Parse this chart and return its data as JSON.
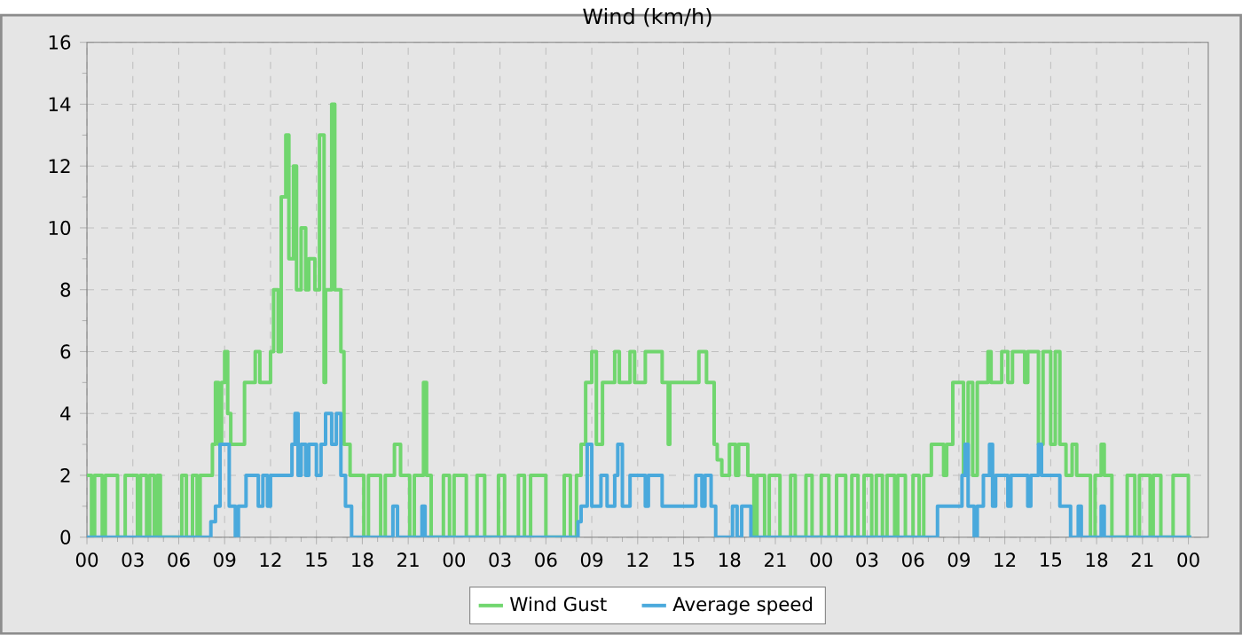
{
  "chart_data": {
    "type": "step",
    "title": "Wind (km/h)",
    "xlim": [
      0,
      73.3
    ],
    "xticks": [
      {
        "value": 0,
        "label": "00"
      },
      {
        "value": 3,
        "label": "03"
      },
      {
        "value": 6,
        "label": "06"
      },
      {
        "value": 9,
        "label": "09"
      },
      {
        "value": 12,
        "label": "12"
      },
      {
        "value": 15,
        "label": "15"
      },
      {
        "value": 18,
        "label": "18"
      },
      {
        "value": 21,
        "label": "21"
      },
      {
        "value": 24,
        "label": "00"
      },
      {
        "value": 27,
        "label": "03"
      },
      {
        "value": 30,
        "label": "06"
      },
      {
        "value": 33,
        "label": "09"
      },
      {
        "value": 36,
        "label": "12"
      },
      {
        "value": 39,
        "label": "15"
      },
      {
        "value": 42,
        "label": "18"
      },
      {
        "value": 45,
        "label": "21"
      },
      {
        "value": 48,
        "label": "00"
      },
      {
        "value": 51,
        "label": "03"
      },
      {
        "value": 54,
        "label": "06"
      },
      {
        "value": 57,
        "label": "09"
      },
      {
        "value": 60,
        "label": "12"
      },
      {
        "value": 63,
        "label": "15"
      },
      {
        "value": 66,
        "label": "18"
      },
      {
        "value": 69,
        "label": "21"
      },
      {
        "value": 72,
        "label": "00"
      }
    ],
    "ylim": [
      0,
      16
    ],
    "yticks": [
      0,
      2,
      4,
      6,
      8,
      10,
      12,
      14,
      16
    ],
    "grid": true,
    "legend": "bottom",
    "series": [
      {
        "name": "Wind Gust",
        "color": "#70d66e",
        "x": [
          0,
          0.3,
          0.5,
          1,
          1.2,
          2,
          2.5,
          3.3,
          3.5,
          3.9,
          4.1,
          4.4,
          4.6,
          4.8,
          6.2,
          6.5,
          6.9,
          7.2,
          7.4,
          8.2,
          8.4,
          8.6,
          8.8,
          9,
          9.2,
          9.4,
          10.3,
          11,
          11.3,
          12,
          12.2,
          12.5,
          12.7,
          13,
          13.2,
          13.5,
          13.7,
          14,
          14.3,
          14.5,
          14.9,
          15.2,
          15.5,
          15.6,
          16,
          16.2,
          16.6,
          16.8,
          17.2,
          18.1,
          18.4,
          19.2,
          19.5,
          20.1,
          20.5,
          21.1,
          21.4,
          22,
          22.2,
          22.5,
          23.3,
          23.7,
          24,
          24.8,
          25.5,
          26,
          26.9,
          27.3,
          28.2,
          28.6,
          29,
          30,
          31.2,
          31.6,
          32,
          32.3,
          32.6,
          33,
          33.3,
          33.7,
          34.5,
          34.8,
          35.5,
          35.8,
          36.5,
          37.6,
          38,
          38.1,
          40,
          40.5,
          41,
          41.2,
          41.5,
          42,
          42.4,
          42.6,
          43.2,
          43.6,
          43.8,
          44.3,
          44.6,
          45.3,
          46,
          46.3,
          47,
          47.4,
          48,
          48.5,
          49,
          49.6,
          50,
          50.4,
          50.8,
          51.3,
          51.6,
          52,
          52.3,
          52.8,
          53,
          53.5,
          54,
          54.4,
          54.7,
          55.2,
          56,
          56.2,
          56.6,
          57.3,
          57.6,
          57.9,
          58.2,
          58.9,
          59.1,
          59.8,
          60.2,
          60.5,
          61.3,
          61.5,
          62.2,
          62.5,
          63,
          63.3,
          63.6,
          64,
          64.4,
          64.7,
          65.6,
          65.9,
          66.3,
          66.5,
          67,
          68,
          68.5,
          68.8,
          69.5,
          69.7,
          70.2,
          71,
          72,
          72.2
        ],
        "values": [
          2,
          0,
          2,
          0,
          2,
          0,
          2,
          0,
          2,
          0,
          2,
          0,
          2,
          0,
          2,
          0,
          2,
          0,
          2,
          3,
          5,
          3,
          5,
          6,
          4,
          3,
          5,
          6,
          5,
          6,
          8,
          6,
          11,
          13,
          9,
          12,
          8,
          10,
          8,
          9,
          8,
          13,
          5,
          8,
          14,
          8,
          6,
          3,
          2,
          0,
          2,
          0,
          2,
          3,
          2,
          0,
          2,
          5,
          2,
          0,
          2,
          0,
          2,
          0,
          2,
          0,
          2,
          0,
          2,
          0,
          2,
          0,
          2,
          0,
          2,
          3,
          5,
          6,
          3,
          5,
          6,
          5,
          6,
          5,
          6,
          5,
          3,
          5,
          6,
          5,
          3,
          2.5,
          2,
          3,
          2,
          3,
          2,
          0,
          2,
          0,
          2,
          0,
          2,
          0,
          2,
          0,
          2,
          0,
          2,
          0,
          2,
          0,
          2,
          0,
          2,
          0,
          2,
          0,
          2,
          0,
          2,
          0,
          2,
          3,
          2,
          3,
          5,
          2,
          5,
          2,
          5,
          6,
          5,
          6,
          5,
          6,
          5,
          6,
          3,
          6,
          3,
          6,
          3,
          2,
          3,
          2,
          0,
          2,
          3,
          2,
          0,
          2,
          0,
          2,
          0,
          2,
          0,
          2,
          0,
          0
        ]
      },
      {
        "name": "Average speed",
        "color": "#4aa9dc",
        "x": [
          0,
          8.1,
          8.4,
          8.7,
          9.3,
          9.7,
          9.9,
          10.4,
          11.2,
          11.5,
          11.8,
          12,
          13.4,
          13.6,
          13.8,
          14,
          14.3,
          14.5,
          15,
          15.3,
          15.6,
          16,
          16.3,
          16.6,
          16.9,
          17.3,
          20,
          20.3,
          21.9,
          22.1,
          32.1,
          32.3,
          32.7,
          33,
          33.6,
          34,
          34.5,
          34.7,
          35,
          35.5,
          36.5,
          36.7,
          37.6,
          39.8,
          40.2,
          40.4,
          40.8,
          41.1,
          42.2,
          42.5,
          42.8,
          43.4,
          55.6,
          57.2,
          57.4,
          57.6,
          58,
          58.2,
          58.6,
          59,
          59.2,
          59.4,
          60.2,
          60.4,
          61.5,
          61.7,
          62.2,
          62.4,
          63.6,
          64.3,
          64.8,
          65,
          66.3,
          66.5,
          72.2
        ],
        "values": [
          0,
          0.5,
          1,
          3,
          1,
          0,
          1,
          2,
          1,
          2,
          1,
          2,
          3,
          4,
          2,
          3,
          2,
          3,
          2,
          3,
          4,
          3,
          4,
          2,
          1,
          0,
          1,
          0,
          1,
          0,
          0.5,
          1,
          3,
          1,
          2,
          1,
          2,
          3,
          1,
          2,
          1,
          2,
          1,
          2,
          1,
          2,
          1,
          0,
          1,
          0,
          1,
          0,
          1,
          2,
          3,
          1,
          0,
          1,
          2,
          3,
          1,
          2,
          1,
          2,
          1,
          2,
          3,
          2,
          1,
          0,
          1,
          0,
          1,
          0,
          0
        ]
      }
    ]
  }
}
